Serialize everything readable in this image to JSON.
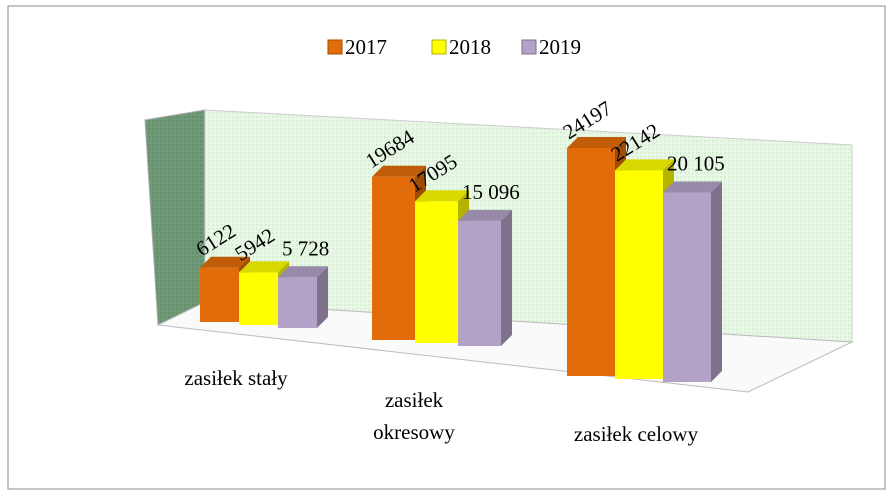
{
  "chart_data": {
    "type": "bar3d",
    "categories": [
      "zasiłek stały",
      "zasiłek okresowy",
      "zasiłek celowy"
    ],
    "series": [
      {
        "name": "2017",
        "color": "#e36c0a",
        "values": [
          6122,
          19684,
          24197
        ]
      },
      {
        "name": "2018",
        "color": "#ffff00",
        "values": [
          5942,
          17095,
          22142
        ]
      },
      {
        "name": "2019",
        "color": "#b3a2c7",
        "values": [
          5728,
          15096,
          20105
        ],
        "value_labels": [
          "5 728",
          "15 096",
          "20 105"
        ]
      }
    ],
    "legend": "top"
  }
}
